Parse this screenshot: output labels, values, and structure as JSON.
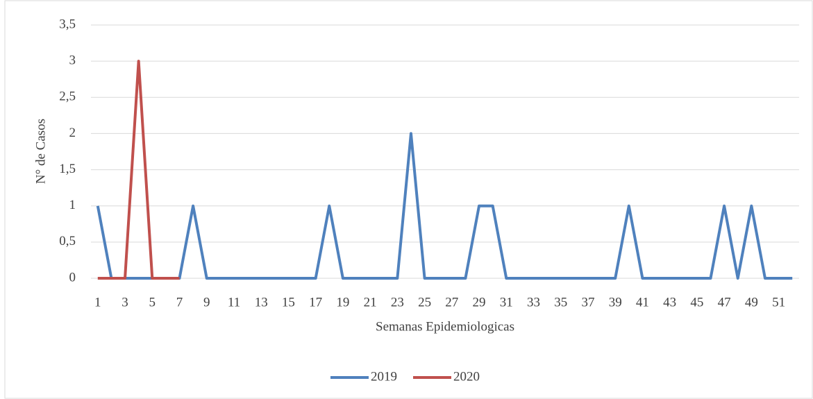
{
  "chart_data": {
    "type": "line",
    "y_label": "N° de Casos",
    "x_label": "Semanas Epidemiologicas",
    "categories": [
      "1",
      null,
      "3",
      null,
      "5",
      null,
      "7",
      null,
      "9",
      null,
      "11",
      null,
      "13",
      null,
      "15",
      null,
      "17",
      null,
      "19",
      null,
      "21",
      null,
      "23",
      null,
      "25",
      null,
      "27",
      null,
      "29",
      null,
      "31",
      null,
      "33",
      null,
      "35",
      null,
      "37",
      null,
      "39",
      null,
      "41",
      null,
      "43",
      null,
      "45",
      null,
      "47",
      null,
      "49",
      null,
      "51",
      null
    ],
    "series": [
      {
        "name": "2019",
        "color": "#4f81bd",
        "values": [
          1,
          0,
          0,
          0,
          0,
          0,
          0,
          1,
          0,
          0,
          0,
          0,
          0,
          0,
          0,
          0,
          0,
          1,
          0,
          0,
          0,
          0,
          0,
          2,
          0,
          0,
          0,
          0,
          1,
          1,
          0,
          0,
          0,
          0,
          0,
          0,
          0,
          0,
          0,
          1,
          0,
          0,
          0,
          0,
          0,
          0,
          1,
          0,
          1,
          0,
          0,
          0
        ]
      },
      {
        "name": "2020",
        "color": "#c0504d",
        "values": [
          0,
          0,
          0,
          3,
          0,
          0,
          0,
          null,
          null,
          null,
          null,
          null,
          null,
          null,
          null,
          null,
          null,
          null,
          null,
          null,
          null,
          null,
          null,
          null,
          null,
          null,
          null,
          null,
          null,
          null,
          null,
          null,
          null,
          null,
          null,
          null,
          null,
          null,
          null,
          null,
          null,
          null,
          null,
          null,
          null,
          null,
          null,
          null,
          null,
          null,
          null,
          null
        ]
      }
    ],
    "ylim": [
      0,
      3.5
    ],
    "yticks": [
      0,
      {
        "value": 0.5,
        "label": "0,5"
      },
      1,
      {
        "value": 1.5,
        "label": "1,5"
      },
      2,
      {
        "value": 2.5,
        "label": "2,5"
      },
      3,
      {
        "value": 3.5,
        "label": "3,5"
      }
    ],
    "grid": true,
    "legend": "bottom"
  }
}
